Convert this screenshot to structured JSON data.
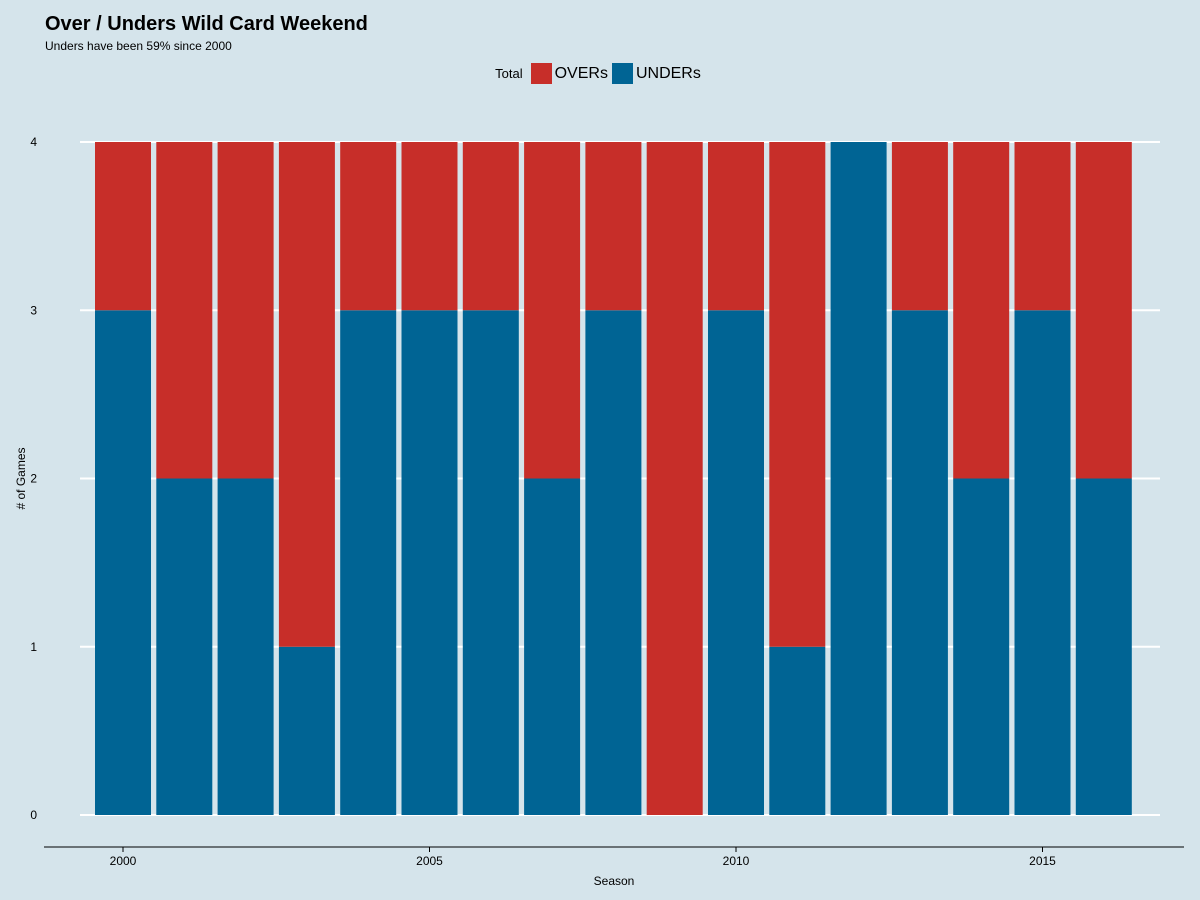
{
  "chart_data": {
    "type": "bar",
    "stacked": true,
    "title": "Over / Unders Wild Card Weekend",
    "subtitle": "Unders have been 59% since 2000",
    "xlabel": "Season",
    "ylabel": "# of Games",
    "legend": {
      "title": "Total",
      "position": "top"
    },
    "x": [
      2000,
      2001,
      2002,
      2003,
      2004,
      2005,
      2006,
      2007,
      2008,
      2009,
      2010,
      2011,
      2012,
      2013,
      2014,
      2015,
      2016
    ],
    "x_ticks": [
      2000,
      2005,
      2010,
      2015
    ],
    "y_ticks": [
      0,
      1,
      2,
      3,
      4
    ],
    "ylim": [
      0,
      4
    ],
    "series": [
      {
        "name": "UNDERs",
        "color": "#006494",
        "values": [
          3,
          2,
          2,
          1,
          3,
          3,
          3,
          2,
          3,
          0,
          3,
          1,
          4,
          3,
          2,
          3,
          2
        ]
      },
      {
        "name": "OVERs",
        "color": "#c72e29",
        "values": [
          1,
          2,
          2,
          3,
          1,
          1,
          1,
          2,
          1,
          4,
          1,
          3,
          0,
          1,
          2,
          1,
          2
        ]
      }
    ],
    "grid": true
  }
}
